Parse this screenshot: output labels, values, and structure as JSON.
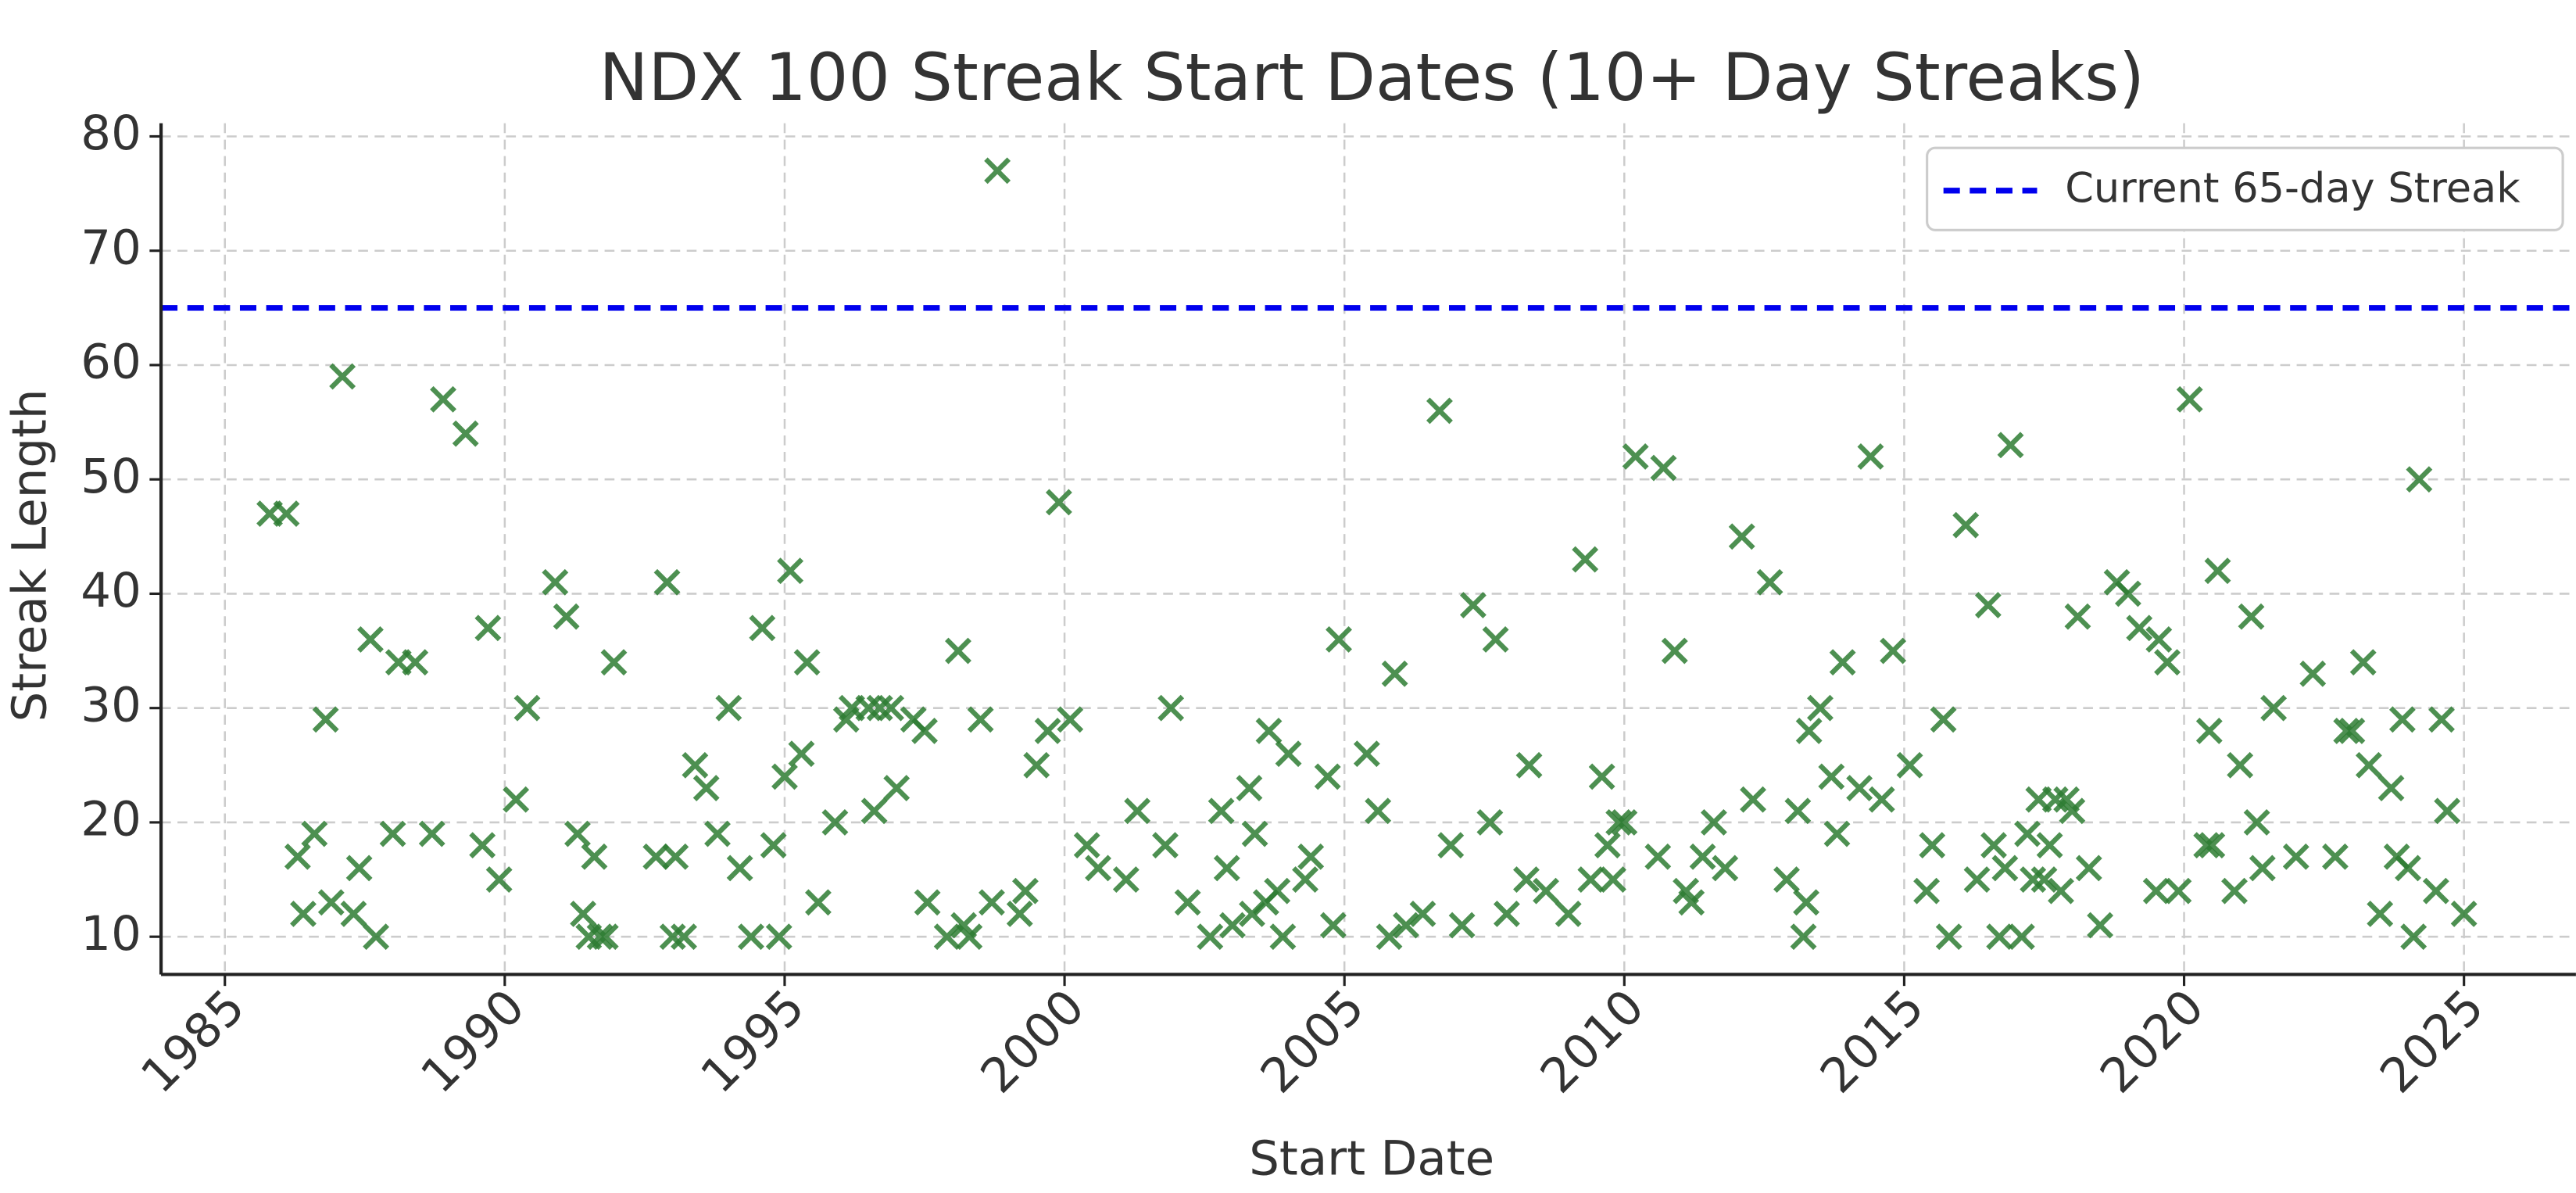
{
  "chart_data": {
    "type": "scatter",
    "title": "NDX 100 Streak Start Dates (10+ Day Streaks)",
    "x_label": "Start Date",
    "y_label": "Streak Length",
    "color": "#2e7d32",
    "marker": "x",
    "grid": true,
    "legend": "upper right",
    "xlim": [
      1983.86,
      2027.0
    ],
    "xticks": [
      1985,
      1990,
      1995,
      2000,
      2005,
      2010,
      2015,
      2020,
      2025
    ],
    "ylim": [
      6.7,
      80
    ],
    "yticks": [
      10,
      20,
      30,
      40,
      50,
      60,
      70,
      80
    ],
    "reference_line": {
      "value": 65,
      "label": "Current 65-day Streak",
      "color": "#0000ee",
      "style": "dashed"
    },
    "x": [
      1985.8,
      1986.1,
      1986.3,
      1986.4,
      1986.6,
      1986.8,
      1986.9,
      1987.1,
      1987.3,
      1987.4,
      1987.6,
      1987.7,
      1988.0,
      1988.1,
      1988.4,
      1988.7,
      1988.9,
      1989.3,
      1989.6,
      1989.7,
      1989.9,
      1990.2,
      1990.4,
      1990.9,
      1991.1,
      1991.3,
      1991.4,
      1991.5,
      1991.6,
      1991.7,
      1991.8,
      1991.95,
      1992.7,
      1992.9,
      1993.0,
      1993.05,
      1993.2,
      1993.4,
      1993.6,
      1993.8,
      1994.0,
      1994.2,
      1994.4,
      1994.6,
      1994.8,
      1994.9,
      1995.0,
      1995.1,
      1995.3,
      1995.4,
      1995.6,
      1995.9,
      1996.1,
      1996.2,
      1996.5,
      1996.6,
      1996.7,
      1996.9,
      1997.0,
      1997.3,
      1997.5,
      1997.55,
      1997.9,
      1998.1,
      1998.2,
      1998.3,
      1998.5,
      1998.7,
      1998.8,
      1999.2,
      1999.3,
      1999.5,
      1999.7,
      1999.9,
      2000.1,
      2000.4,
      2000.6,
      2001.1,
      2001.3,
      2001.8,
      2001.9,
      2002.2,
      2002.6,
      2002.8,
      2002.9,
      2003.0,
      2003.3,
      2003.35,
      2003.4,
      2003.6,
      2003.65,
      2003.8,
      2003.9,
      2004.0,
      2004.3,
      2004.4,
      2004.7,
      2004.8,
      2004.9,
      2005.4,
      2005.6,
      2005.8,
      2005.9,
      2006.1,
      2006.4,
      2006.7,
      2006.9,
      2007.1,
      2007.3,
      2007.6,
      2007.7,
      2007.9,
      2008.3,
      2008.25,
      2008.6,
      2009.0,
      2009.3,
      2009.4,
      2009.6,
      2009.7,
      2009.8,
      2009.9,
      2010.0,
      2010.2,
      2010.6,
      2010.7,
      2010.9,
      2011.1,
      2011.2,
      2011.4,
      2011.6,
      2011.8,
      2012.1,
      2012.3,
      2012.6,
      2012.9,
      2013.1,
      2013.2,
      2013.25,
      2013.3,
      2013.5,
      2013.7,
      2013.8,
      2013.9,
      2014.2,
      2014.4,
      2014.6,
      2014.8,
      2015.1,
      2015.4,
      2015.5,
      2015.7,
      2015.8,
      2016.1,
      2016.3,
      2016.5,
      2016.6,
      2016.7,
      2016.8,
      2016.9,
      2017.1,
      2017.2,
      2017.3,
      2017.4,
      2017.5,
      2017.6,
      2017.7,
      2017.8,
      2017.9,
      2018.0,
      2018.1,
      2018.3,
      2018.5,
      2018.8,
      2019.0,
      2019.2,
      2019.5,
      2019.55,
      2019.7,
      2019.9,
      2020.1,
      2020.4,
      2020.45,
      2020.5,
      2020.6,
      2020.9,
      2021.0,
      2021.2,
      2021.3,
      2021.4,
      2021.6,
      2022.0,
      2022.3,
      2022.7,
      2022.9,
      2023.0,
      2023.2,
      2023.3,
      2023.5,
      2023.7,
      2023.8,
      2023.9,
      2024.0,
      2024.1,
      2024.2,
      2024.5,
      2024.6,
      2024.7,
      2025.0
    ],
    "values": [
      47,
      47,
      17,
      12,
      19,
      29,
      13,
      59,
      12,
      16,
      36,
      10,
      19,
      34,
      34,
      19,
      57,
      54,
      18,
      37,
      15,
      22,
      30,
      41,
      38,
      19,
      12,
      10,
      17,
      10,
      10,
      34,
      17,
      41,
      10,
      17,
      10,
      25,
      23,
      19,
      30,
      16,
      10,
      37,
      18,
      10,
      24,
      42,
      26,
      34,
      13,
      20,
      29,
      30,
      30,
      21,
      30,
      30,
      23,
      29,
      28,
      13,
      10,
      35,
      11,
      10,
      29,
      13,
      77,
      12,
      14,
      25,
      28,
      48,
      29,
      18,
      16,
      15,
      21,
      18,
      30,
      13,
      10,
      21,
      16,
      11,
      23,
      12,
      19,
      13,
      28,
      14,
      10,
      26,
      15,
      17,
      24,
      11,
      36,
      26,
      21,
      10,
      33,
      11,
      12,
      56,
      18,
      11,
      39,
      20,
      36,
      12,
      25,
      15,
      14,
      12,
      43,
      15,
      24,
      18,
      15,
      20,
      20,
      52,
      17,
      51,
      35,
      14,
      13,
      17,
      20,
      16,
      45,
      22,
      41,
      15,
      21,
      10,
      13,
      28,
      30,
      24,
      19,
      34,
      23,
      52,
      22,
      35,
      25,
      14,
      18,
      29,
      10,
      46,
      15,
      39,
      18,
      10,
      16,
      53,
      10,
      19,
      15,
      22,
      15,
      18,
      22,
      14,
      22,
      21,
      38,
      16,
      11,
      41,
      40,
      37,
      14,
      36,
      34,
      14,
      57,
      18,
      28,
      18,
      42,
      14,
      25,
      38,
      20,
      16,
      30,
      17,
      33,
      17,
      28,
      28,
      34,
      25,
      12,
      23,
      17,
      29,
      16,
      10,
      50,
      14,
      29,
      21,
      12
    ]
  }
}
